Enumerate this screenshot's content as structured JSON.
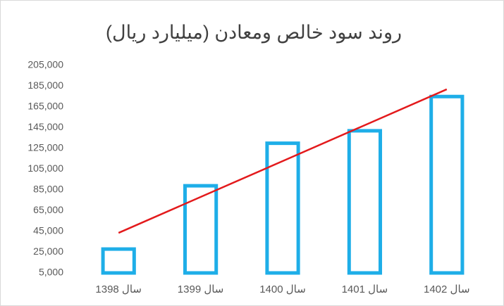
{
  "chart_data": {
    "type": "bar",
    "title": "روند سود خالص ومعادن (میلیارد ریال)",
    "categories": [
      "سال 1398",
      "سال 1399",
      "سال 1400",
      "سال 1401",
      "سال 1402"
    ],
    "values": [
      28000,
      89000,
      130000,
      142000,
      175000
    ],
    "color": "#1eaee8",
    "trendline": {
      "color": "#e31a1c",
      "values": [
        43600,
        78200,
        112800,
        147400,
        182000
      ]
    },
    "ylim": [
      5000,
      205000
    ],
    "yticks": [
      {
        "value": 5000,
        "label": "5,000"
      },
      {
        "value": 25000,
        "label": "25,000"
      },
      {
        "value": 45000,
        "label": "45,000"
      },
      {
        "value": 65000,
        "label": "65,000"
      },
      {
        "value": 85000,
        "label": "85,000"
      },
      {
        "value": 105000,
        "label": "105,000"
      },
      {
        "value": 125000,
        "label": "125,000"
      },
      {
        "value": 145000,
        "label": "145,000"
      },
      {
        "value": 165000,
        "label": "165,000"
      },
      {
        "value": 185000,
        "label": "185,000"
      },
      {
        "value": 205000,
        "label": "205,000"
      }
    ],
    "grid": false
  }
}
